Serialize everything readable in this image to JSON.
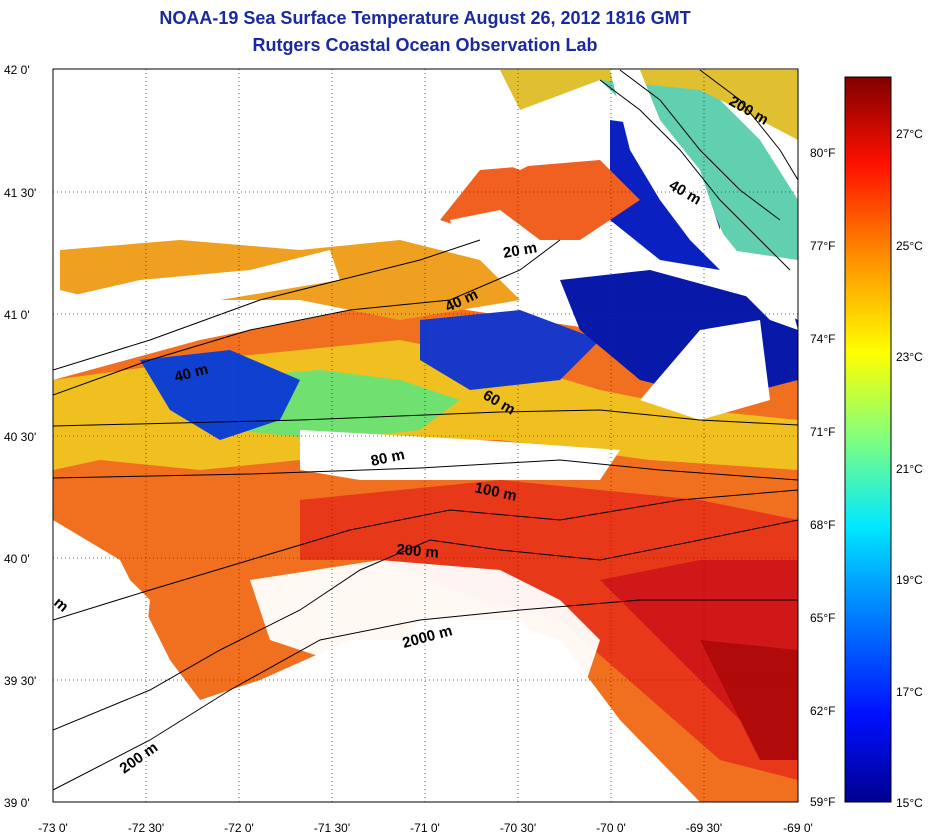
{
  "title": "NOAA-19 Sea Surface Temperature August 26, 2012 1816 GMT",
  "subtitle": "Rutgers Coastal Ocean Observation Lab",
  "lat_labels": [
    "42 0'",
    "41 30'",
    "41 0'",
    "40 30'",
    "40 0'",
    "39 30'",
    "39 0'"
  ],
  "lon_labels": [
    "-73 0'",
    "-72 30'",
    "-72 0'",
    "-71 30'",
    "-71 0'",
    "-70 30'",
    "-70 0'",
    "-69 30'",
    "-69 0'"
  ],
  "colorbar": {
    "fahrenheit_labels": [
      "80°F",
      "77°F",
      "74°F",
      "71°F",
      "68°F",
      "65°F",
      "62°F",
      "59°F"
    ],
    "celsius_labels": [
      "27°C",
      "25°C",
      "23°C",
      "21°C",
      "19°C",
      "17°C",
      "15°C"
    ]
  },
  "contour_labels": [
    "200 m",
    "40 m",
    "20 m",
    "40 m",
    "40 m",
    "60 m",
    "80 m",
    "100 m",
    "200 m",
    "2000 m",
    "200 m",
    "m"
  ],
  "colors": {
    "title": "#1a2a9e",
    "land": "#ffffff",
    "warm": "#e8381a",
    "cold": "#1030c0"
  }
}
